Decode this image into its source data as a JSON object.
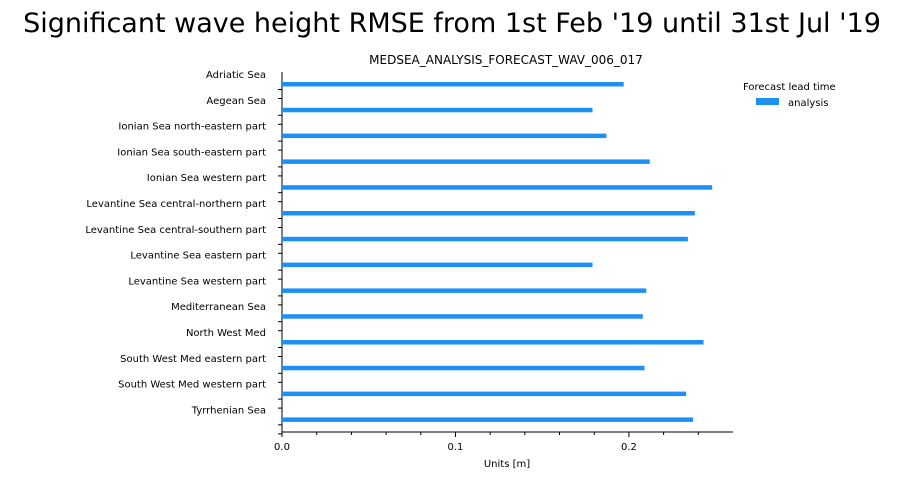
{
  "figure": {
    "suptitle": "Significant wave height RMSE from 1st Feb '19 until 31st Jul '19"
  },
  "chart_data": {
    "type": "bar",
    "orientation": "horizontal",
    "title": "MEDSEA_ANALYSIS_FORECAST_WAV_006_017",
    "xlabel": "Units [m]",
    "ylabel": "",
    "xlim": [
      0,
      0.26
    ],
    "xticks": [
      0.0,
      0.1,
      0.2
    ],
    "xtick_labels": [
      "0.0",
      "0.1",
      "0.2"
    ],
    "categories": [
      "Adriatic Sea",
      "Aegean Sea",
      "Ionian Sea north-eastern part",
      "Ionian Sea south-eastern part",
      "Ionian Sea western part",
      "Levantine Sea central-northern part",
      "Levantine Sea central-southern part",
      "Levantine Sea eastern part",
      "Levantine Sea western part",
      "Mediterranean Sea",
      "North West Med",
      "South West Med eastern part",
      "South West Med western part",
      "Tyrrhenian Sea"
    ],
    "series": [
      {
        "name": "analysis",
        "color": "#1e8ff5",
        "values": [
          0.197,
          0.179,
          0.187,
          0.212,
          0.248,
          0.238,
          0.234,
          0.179,
          0.21,
          0.208,
          0.243,
          0.209,
          0.233,
          0.237
        ]
      }
    ],
    "legend": {
      "title": "Forecast lead time",
      "position": "top-right"
    },
    "grid": false
  }
}
